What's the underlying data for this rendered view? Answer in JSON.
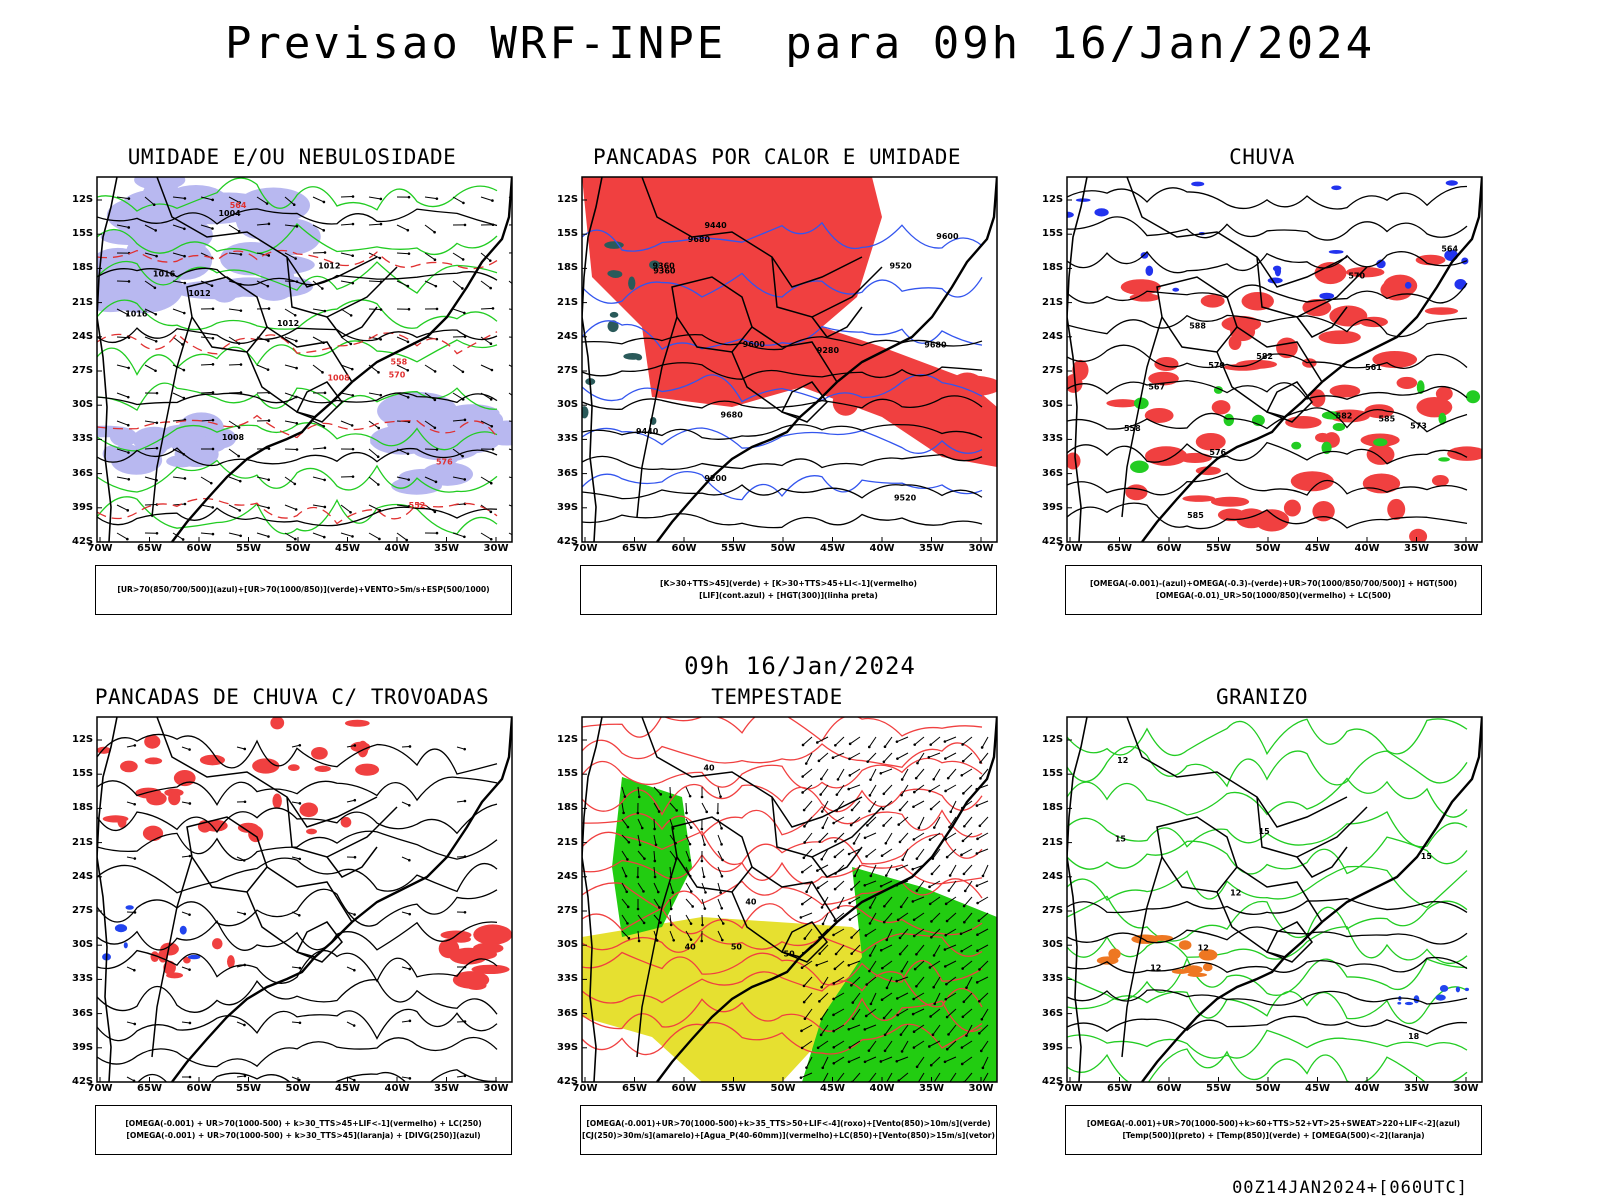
{
  "header": {
    "title": "Previsao WRF-INPE  para 09h 16/Jan/2024",
    "subtitle": "09h 16/Jan/2024"
  },
  "axes": {
    "lat_ticks": [
      "12S",
      "15S",
      "18S",
      "21S",
      "24S",
      "27S",
      "30S",
      "33S",
      "36S",
      "39S",
      "42S"
    ],
    "lon_ticks": [
      "70W",
      "65W",
      "60W",
      "55W",
      "50W",
      "45W",
      "40W",
      "35W",
      "30W"
    ]
  },
  "panels": [
    {
      "title": "UMIDADE E/OU NEBULOSIDADE",
      "legend": [
        "[UR>70(850/700/500)](azul)+[UR>70(1000/850)](verde)+VENTO>5m/s+ESP(500/1000)"
      ],
      "labels": [
        "1012",
        "1016",
        "1012",
        "1004",
        "1008",
        "1012",
        "1016",
        "1008",
        "576",
        "570",
        "564",
        "558",
        "552"
      ]
    },
    {
      "title": "PANCADAS POR CALOR E UMIDADE",
      "legend": [
        "[K>30+TTS>45](verde) + [K>30+TTS>45+LI<-1](vermelho)",
        "[LIF](cont.azul) + [HGT(300)](linha preta)"
      ],
      "labels": [
        "9680",
        "9680",
        "9600",
        "9520",
        "9440",
        "9360",
        "9280",
        "9200",
        "9680",
        "9600",
        "9520",
        "9440",
        "9360"
      ]
    },
    {
      "title": "CHUVA",
      "legend": [
        "[OMEGA(-0.001)-(azul)+OMEGA(-0.3)-(verde)+UR>70(1000/850/700/500)] + HGT(500)",
        "[OMEGA(-0.01)_UR>50(1000/850)(vermelho) + LC(500)"
      ],
      "labels": [
        "585",
        "582",
        "579",
        "576",
        "573",
        "570",
        "567",
        "564",
        "561",
        "558",
        "588",
        "585",
        "582"
      ]
    },
    {
      "title": "PANCADAS DE CHUVA C/ TROVOADAS",
      "legend": [
        "[OMEGA(-0.001) + UR>70(1000-500) + k>30_TTS>45+LIF<-1](vermelho) + LC(250)",
        "[OMEGA(-0.001) + UR>70(1000-500) + k>30_TTS>45](laranja) + [DIVG(250)](azul)"
      ],
      "labels": []
    },
    {
      "title": "TEMPESTADE",
      "legend": [
        "[OMEGA(-0.001)+UR>70(1000-500)+k>35_TTS>50+LIF<-4](roxo)+[Vento(850)>10m/s](verde)",
        "[CJ(250)>30m/s](amarelo)+[Agua_P(40-60mm)](vermelho)+LC(850)+[Vento(850)>15m/s](vetor)"
      ],
      "labels": [
        "50",
        "40",
        "40",
        "40",
        "50"
      ]
    },
    {
      "title": "GRANIZO",
      "legend": [
        "[OMEGA(-0.001)+UR>70(1000-500)+k>60+TTS>52+VT>25+SWEAT>220+LIF<-2](azul)",
        "[Temp(500)](preto) + [Temp(850)](verde) + [OMEGA(500)<-2](laranja)"
      ],
      "labels": [
        "12",
        "15",
        "12",
        "15",
        "12",
        "15",
        "18",
        "12"
      ]
    }
  ],
  "footer": {
    "stamp": "00Z14JAN2024+[060UTC]"
  }
}
